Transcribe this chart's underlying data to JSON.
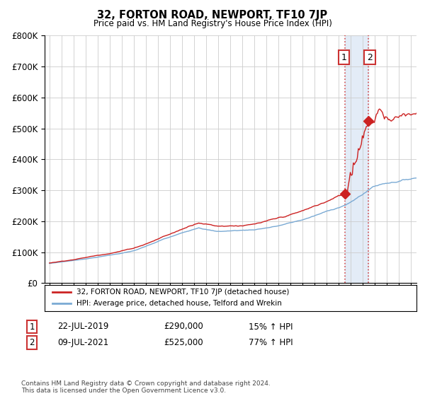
{
  "title": "32, FORTON ROAD, NEWPORT, TF10 7JP",
  "subtitle": "Price paid vs. HM Land Registry's House Price Index (HPI)",
  "ylabel_ticks": [
    "£0",
    "£100K",
    "£200K",
    "£300K",
    "£400K",
    "£500K",
    "£600K",
    "£700K",
    "£800K"
  ],
  "ytick_values": [
    0,
    100000,
    200000,
    300000,
    400000,
    500000,
    600000,
    700000,
    800000
  ],
  "ylim": [
    0,
    800000
  ],
  "hpi_color": "#7aaad4",
  "price_color": "#cc2222",
  "sale1_date_label": "22-JUL-2019",
  "sale1_price_label": "£290,000",
  "sale1_hpi_label": "15% ↑ HPI",
  "sale2_date_label": "09-JUL-2021",
  "sale2_price_label": "£525,000",
  "sale2_hpi_label": "77% ↑ HPI",
  "sale1_x": 2019.55,
  "sale1_price": 290000,
  "sale2_x": 2021.52,
  "sale2_price": 525000,
  "legend_label1": "32, FORTON ROAD, NEWPORT, TF10 7JP (detached house)",
  "legend_label2": "HPI: Average price, detached house, Telford and Wrekin",
  "footnote": "Contains HM Land Registry data © Crown copyright and database right 2024.\nThis data is licensed under the Open Government Licence v3.0.",
  "grid_color": "#cccccc",
  "background_color": "#ffffff",
  "shaded_region_color": "#dde8f5",
  "box_edge_color": "#cc3333"
}
